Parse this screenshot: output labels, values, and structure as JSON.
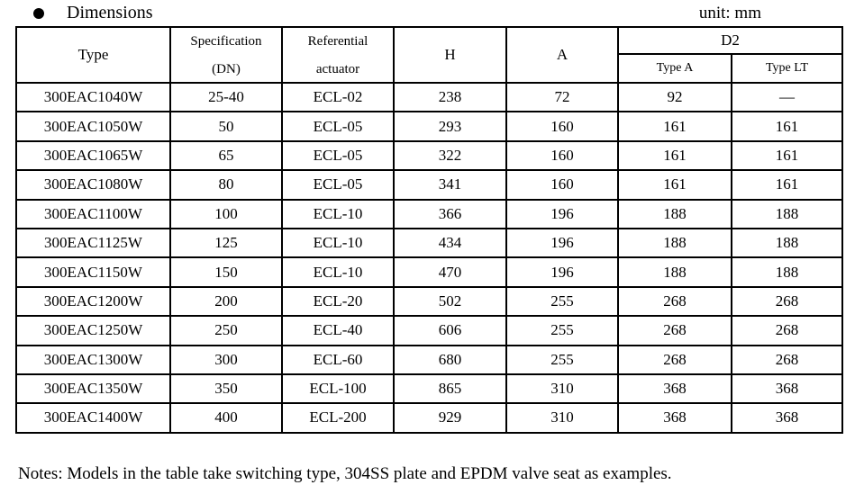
{
  "page": {
    "title": "Dimensions",
    "unit_label": "unit: mm",
    "notes": "Notes: Models in the table take switching type, 304SS plate and EPDM valve seat as examples."
  },
  "table": {
    "headers": {
      "type": "Type",
      "specification_line1": "Specification",
      "specification_line2": "(DN)",
      "referential_line1": "Referential",
      "referential_line2": "actuator",
      "h": "H",
      "a": "A",
      "d2": "D2",
      "d2_type_a": "Type A",
      "d2_type_lt": "Type LT"
    },
    "rows": [
      {
        "type": "300EAC1040W",
        "dn": "25-40",
        "actuator": "ECL-02",
        "h": "238",
        "a": "72",
        "d2_type_a": "92",
        "d2_type_lt": "—"
      },
      {
        "type": "300EAC1050W",
        "dn": "50",
        "actuator": "ECL-05",
        "h": "293",
        "a": "160",
        "d2_type_a": "161",
        "d2_type_lt": "161"
      },
      {
        "type": "300EAC1065W",
        "dn": "65",
        "actuator": "ECL-05",
        "h": "322",
        "a": "160",
        "d2_type_a": "161",
        "d2_type_lt": "161"
      },
      {
        "type": "300EAC1080W",
        "dn": "80",
        "actuator": "ECL-05",
        "h": "341",
        "a": "160",
        "d2_type_a": "161",
        "d2_type_lt": "161"
      },
      {
        "type": "300EAC1100W",
        "dn": "100",
        "actuator": "ECL-10",
        "h": "366",
        "a": "196",
        "d2_type_a": "188",
        "d2_type_lt": "188"
      },
      {
        "type": "300EAC1125W",
        "dn": "125",
        "actuator": "ECL-10",
        "h": "434",
        "a": "196",
        "d2_type_a": "188",
        "d2_type_lt": "188"
      },
      {
        "type": "300EAC1150W",
        "dn": "150",
        "actuator": "ECL-10",
        "h": "470",
        "a": "196",
        "d2_type_a": "188",
        "d2_type_lt": "188"
      },
      {
        "type": "300EAC1200W",
        "dn": "200",
        "actuator": "ECL-20",
        "h": "502",
        "a": "255",
        "d2_type_a": "268",
        "d2_type_lt": "268"
      },
      {
        "type": "300EAC1250W",
        "dn": "250",
        "actuator": "ECL-40",
        "h": "606",
        "a": "255",
        "d2_type_a": "268",
        "d2_type_lt": "268"
      },
      {
        "type": "300EAC1300W",
        "dn": "300",
        "actuator": "ECL-60",
        "h": "680",
        "a": "255",
        "d2_type_a": "268",
        "d2_type_lt": "268"
      },
      {
        "type": "300EAC1350W",
        "dn": "350",
        "actuator": "ECL-100",
        "h": "865",
        "a": "310",
        "d2_type_a": "368",
        "d2_type_lt": "368"
      },
      {
        "type": "300EAC1400W",
        "dn": "400",
        "actuator": "ECL-200",
        "h": "929",
        "a": "310",
        "d2_type_a": "368",
        "d2_type_lt": "368"
      }
    ]
  }
}
